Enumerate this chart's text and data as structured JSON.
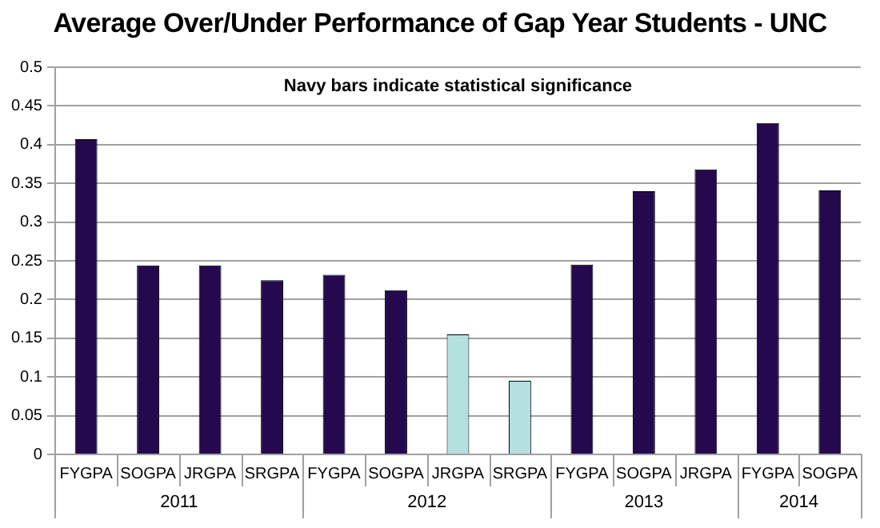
{
  "chart_data": {
    "type": "bar",
    "title": "Average Over/Under Performance of Gap Year Students - UNC",
    "categories": [
      "FYGPA",
      "SOGPA",
      "JRGPA",
      "SRGPA",
      "FYGPA",
      "SOGPA",
      "JRGPA",
      "SRGPA",
      "FYGPA",
      "SOGPA",
      "JRGPA",
      "FYGPA",
      "SOGPA"
    ],
    "values": [
      0.407,
      0.244,
      0.244,
      0.225,
      0.232,
      0.212,
      0.155,
      0.095,
      0.245,
      0.34,
      0.368,
      0.428,
      0.341
    ],
    "colors": [
      "#24094f",
      "#24094f",
      "#24094f",
      "#24094f",
      "#24094f",
      "#24094f",
      "#b4e0e0",
      "#b4e0e0",
      "#24094f",
      "#24094f",
      "#24094f",
      "#24094f",
      "#24094f"
    ],
    "ylim": [
      0,
      0.5
    ],
    "yticks": [
      0,
      0.05,
      0.1,
      0.15,
      0.2,
      0.25,
      0.3,
      0.35,
      0.4,
      0.45,
      0.5
    ],
    "grid": "y",
    "legend": false,
    "annotations": [
      "Navy bars indicate statistical significance",
      "2011",
      "2012",
      "2013",
      "2014"
    ]
  }
}
